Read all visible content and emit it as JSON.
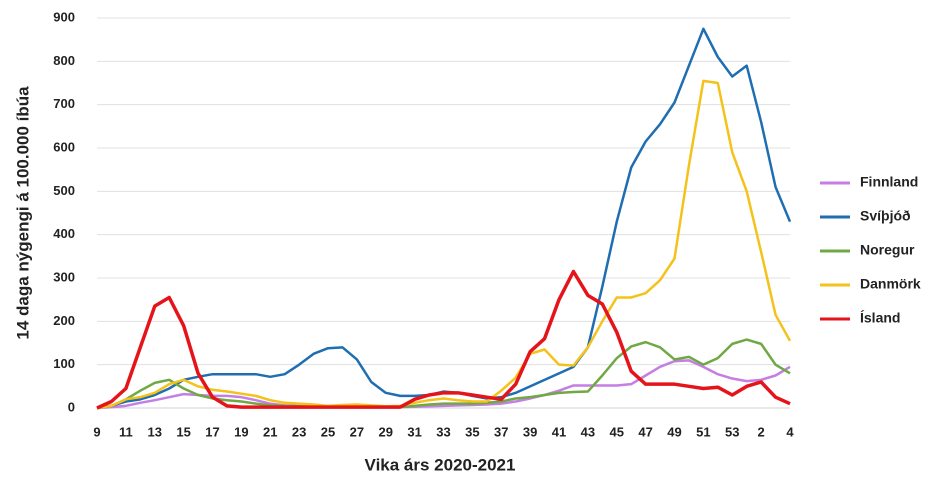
{
  "chart_data": {
    "type": "line",
    "xlabel": "Vika árs 2020-2021",
    "ylabel": "14 daga nýgengi á 100.000 íbúa",
    "categories": [
      9,
      null,
      11,
      null,
      13,
      null,
      15,
      null,
      17,
      null,
      19,
      null,
      21,
      null,
      23,
      null,
      25,
      null,
      27,
      null,
      29,
      null,
      31,
      null,
      33,
      null,
      35,
      null,
      37,
      null,
      39,
      null,
      41,
      null,
      43,
      null,
      45,
      null,
      47,
      null,
      49,
      null,
      51,
      null,
      53,
      null,
      2,
      null,
      4
    ],
    "ylim": [
      0,
      900
    ],
    "yticks": [
      0,
      100,
      200,
      300,
      400,
      500,
      600,
      700,
      800,
      900
    ],
    "grid": true,
    "legend": "right",
    "series": [
      {
        "name": "Finnland",
        "color": "#c47ee4",
        "values": [
          0,
          2,
          5,
          12,
          18,
          25,
          32,
          30,
          28,
          28,
          25,
          18,
          10,
          6,
          5,
          4,
          3,
          3,
          3,
          3,
          2,
          2,
          3,
          4,
          5,
          6,
          7,
          8,
          10,
          15,
          22,
          30,
          40,
          52,
          52,
          52,
          52,
          55,
          75,
          95,
          108,
          110,
          95,
          78,
          68,
          62,
          65,
          75,
          95
        ]
      },
      {
        "name": "Svíþjóð",
        "color": "#1f6eb2",
        "values": [
          0,
          5,
          15,
          20,
          30,
          45,
          65,
          72,
          78,
          78,
          78,
          78,
          72,
          78,
          100,
          125,
          138,
          140,
          112,
          60,
          35,
          28,
          28,
          30,
          38,
          35,
          28,
          22,
          25,
          35,
          50,
          65,
          80,
          95,
          140,
          280,
          430,
          555,
          615,
          655,
          705,
          790,
          875,
          810,
          765,
          790,
          660,
          510,
          430
        ]
      },
      {
        "name": "Noregur",
        "color": "#70a844",
        "values": [
          0,
          5,
          20,
          40,
          58,
          65,
          45,
          30,
          22,
          18,
          15,
          10,
          6,
          5,
          4,
          3,
          3,
          4,
          4,
          3,
          2,
          2,
          5,
          8,
          10,
          10,
          10,
          12,
          15,
          22,
          25,
          30,
          35,
          37,
          38,
          75,
          115,
          142,
          152,
          140,
          112,
          118,
          100,
          115,
          148,
          158,
          148,
          100,
          80
        ]
      },
      {
        "name": "Danmörk",
        "color": "#f4c21a",
        "values": [
          0,
          5,
          20,
          25,
          35,
          55,
          65,
          50,
          42,
          38,
          33,
          28,
          18,
          12,
          10,
          8,
          5,
          7,
          8,
          6,
          4,
          5,
          12,
          18,
          22,
          18,
          15,
          15,
          40,
          70,
          125,
          135,
          100,
          98,
          140,
          200,
          255,
          255,
          265,
          295,
          345,
          560,
          755,
          750,
          590,
          500,
          360,
          215,
          155
        ]
      },
      {
        "name": "Ísland",
        "color": "#e5141b",
        "values": [
          0,
          15,
          45,
          140,
          235,
          255,
          190,
          80,
          25,
          5,
          2,
          2,
          2,
          2,
          2,
          2,
          2,
          2,
          2,
          2,
          2,
          2,
          20,
          30,
          35,
          35,
          30,
          25,
          20,
          55,
          130,
          160,
          250,
          315,
          260,
          240,
          175,
          85,
          55,
          55,
          55,
          50,
          45,
          48,
          30,
          50,
          60,
          25,
          10
        ]
      }
    ]
  }
}
